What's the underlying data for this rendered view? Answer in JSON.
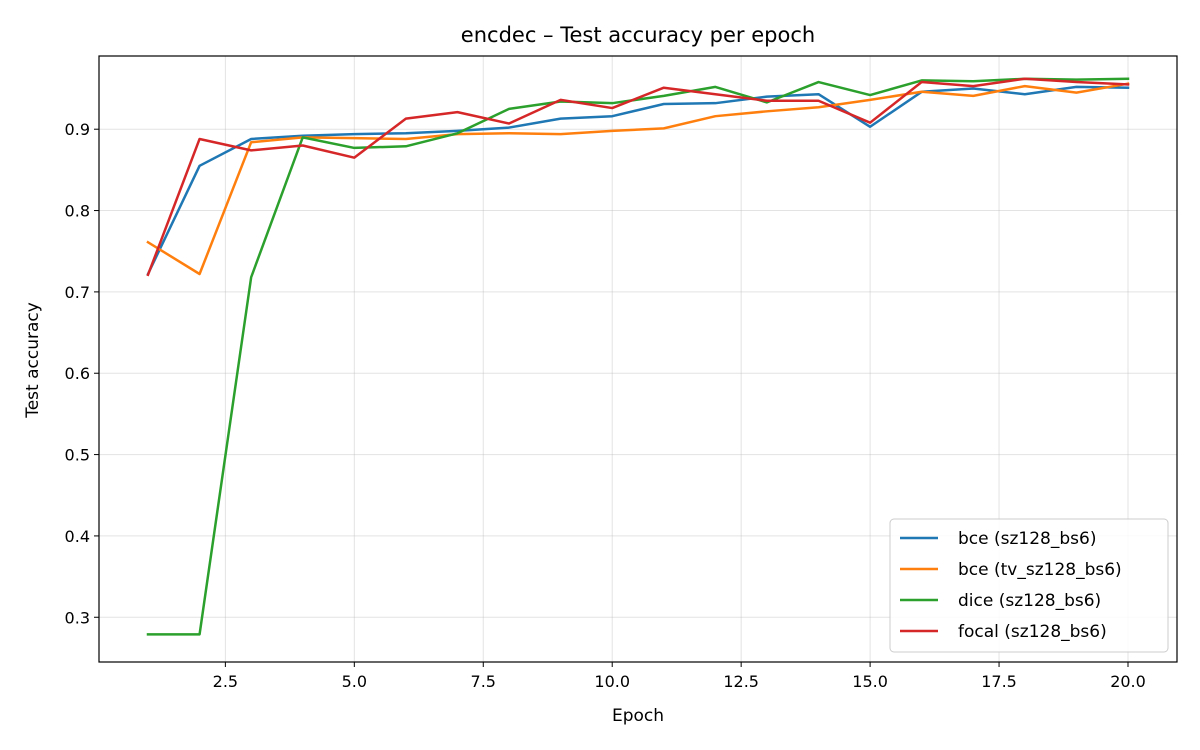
{
  "chart_data": {
    "type": "line",
    "title": "encdec – Test accuracy per epoch",
    "xlabel": "Epoch",
    "ylabel": "Test accuracy",
    "xlim": [
      0.05,
      20.95
    ],
    "ylim": [
      0.245,
      0.99
    ],
    "xticks": [
      2.5,
      5.0,
      7.5,
      10.0,
      12.5,
      15.0,
      17.5,
      20.0
    ],
    "xtick_labels": [
      "2.5",
      "5.0",
      "7.5",
      "10.0",
      "12.5",
      "15.0",
      "17.5",
      "20.0"
    ],
    "yticks": [
      0.3,
      0.4,
      0.5,
      0.6,
      0.7,
      0.8,
      0.9
    ],
    "ytick_labels": [
      "0.3",
      "0.4",
      "0.5",
      "0.6",
      "0.7",
      "0.8",
      "0.9"
    ],
    "grid": true,
    "legend_position": "lower-right",
    "x": [
      1,
      2,
      3,
      4,
      5,
      6,
      7,
      8,
      9,
      10,
      11,
      12,
      13,
      14,
      15,
      16,
      17,
      18,
      19,
      20
    ],
    "series": [
      {
        "name": "bce (sz128_bs6)",
        "color": "#1f77b4",
        "values": [
          0.722,
          0.855,
          0.888,
          0.892,
          0.894,
          0.895,
          0.898,
          0.902,
          0.913,
          0.916,
          0.931,
          0.932,
          0.94,
          0.943,
          0.903,
          0.946,
          0.95,
          0.943,
          0.952,
          0.951
        ]
      },
      {
        "name": "bce (tv_sz128_bs6)",
        "color": "#ff7f0e",
        "values": [
          0.761,
          0.722,
          0.884,
          0.89,
          0.889,
          0.888,
          0.894,
          0.895,
          0.894,
          0.898,
          0.901,
          0.916,
          0.922,
          0.927,
          0.936,
          0.946,
          0.941,
          0.953,
          0.945,
          0.956
        ]
      },
      {
        "name": "dice (sz128_bs6)",
        "color": "#2ca02c",
        "values": [
          0.279,
          0.279,
          0.718,
          0.89,
          0.877,
          0.879,
          0.895,
          0.925,
          0.934,
          0.932,
          0.941,
          0.952,
          0.933,
          0.958,
          0.942,
          0.96,
          0.959,
          0.962,
          0.961,
          0.962
        ]
      },
      {
        "name": "focal (sz128_bs6)",
        "color": "#d62728",
        "values": [
          0.721,
          0.888,
          0.874,
          0.88,
          0.865,
          0.913,
          0.921,
          0.907,
          0.936,
          0.926,
          0.951,
          0.943,
          0.935,
          0.935,
          0.908,
          0.958,
          0.953,
          0.962,
          0.958,
          0.955
        ]
      }
    ]
  }
}
